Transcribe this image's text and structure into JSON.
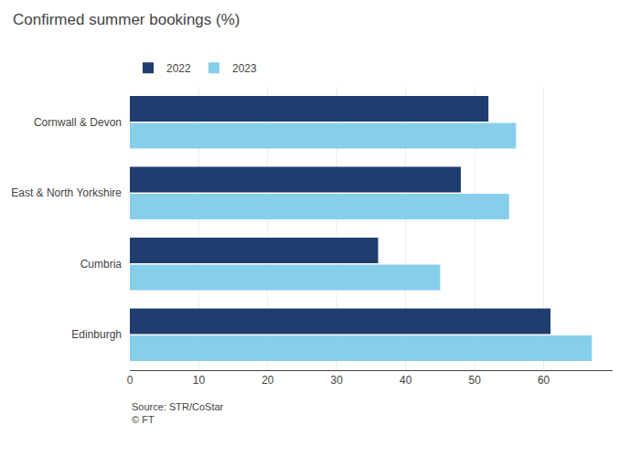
{
  "chart_data": {
    "type": "bar",
    "orientation": "horizontal",
    "title": "Confirmed summer bookings (%)",
    "categories": [
      "Edinburgh",
      "Cumbria",
      "East & North Yorkshire",
      "Cornwall & Devon"
    ],
    "series": [
      {
        "name": "2022",
        "color": "#1f3d6e",
        "values": [
          61,
          36,
          48,
          52
        ]
      },
      {
        "name": "2023",
        "color": "#87ceeb",
        "values": [
          67,
          45,
          55,
          56
        ]
      }
    ],
    "xlim": [
      0,
      70
    ],
    "xticks": [
      0,
      10,
      20,
      30,
      40,
      50,
      60
    ],
    "grid": true,
    "legend": "top left",
    "annotations": [
      "Source: STR/CoStar",
      "© FT"
    ]
  }
}
